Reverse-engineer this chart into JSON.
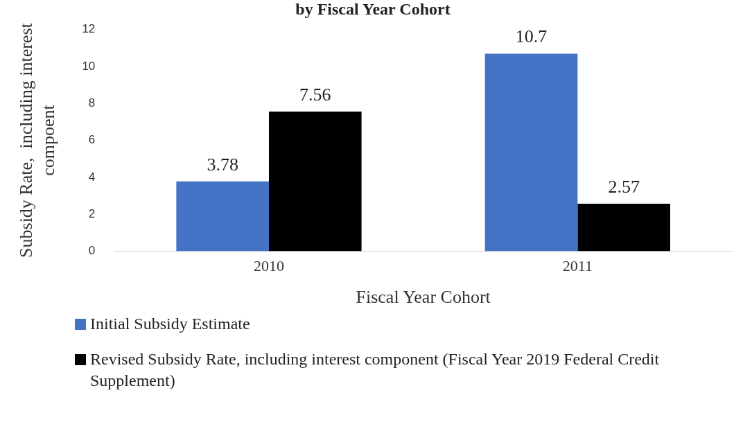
{
  "chart_data": {
    "type": "bar",
    "title": "by Fiscal Year Cohort",
    "xlabel": "Fiscal Year Cohort",
    "ylabel": "Subsidy Rate,  including interest compoent",
    "categories": [
      "2010",
      "2011"
    ],
    "series": [
      {
        "name": "Initial Subsidy Estimate",
        "color": "#4472c4",
        "values": [
          3.78,
          10.7
        ]
      },
      {
        "name": "Revised Subsidy Rate, including interest component (Fiscal Year 2019 Federal Credit Supplement)",
        "color": "#000000",
        "values": [
          7.56,
          2.57
        ]
      }
    ],
    "ylim": [
      0,
      12
    ],
    "yticks": [
      0,
      2,
      4,
      6,
      8,
      10,
      12
    ],
    "grid": false,
    "legend": "bottom",
    "data_labels": true
  }
}
